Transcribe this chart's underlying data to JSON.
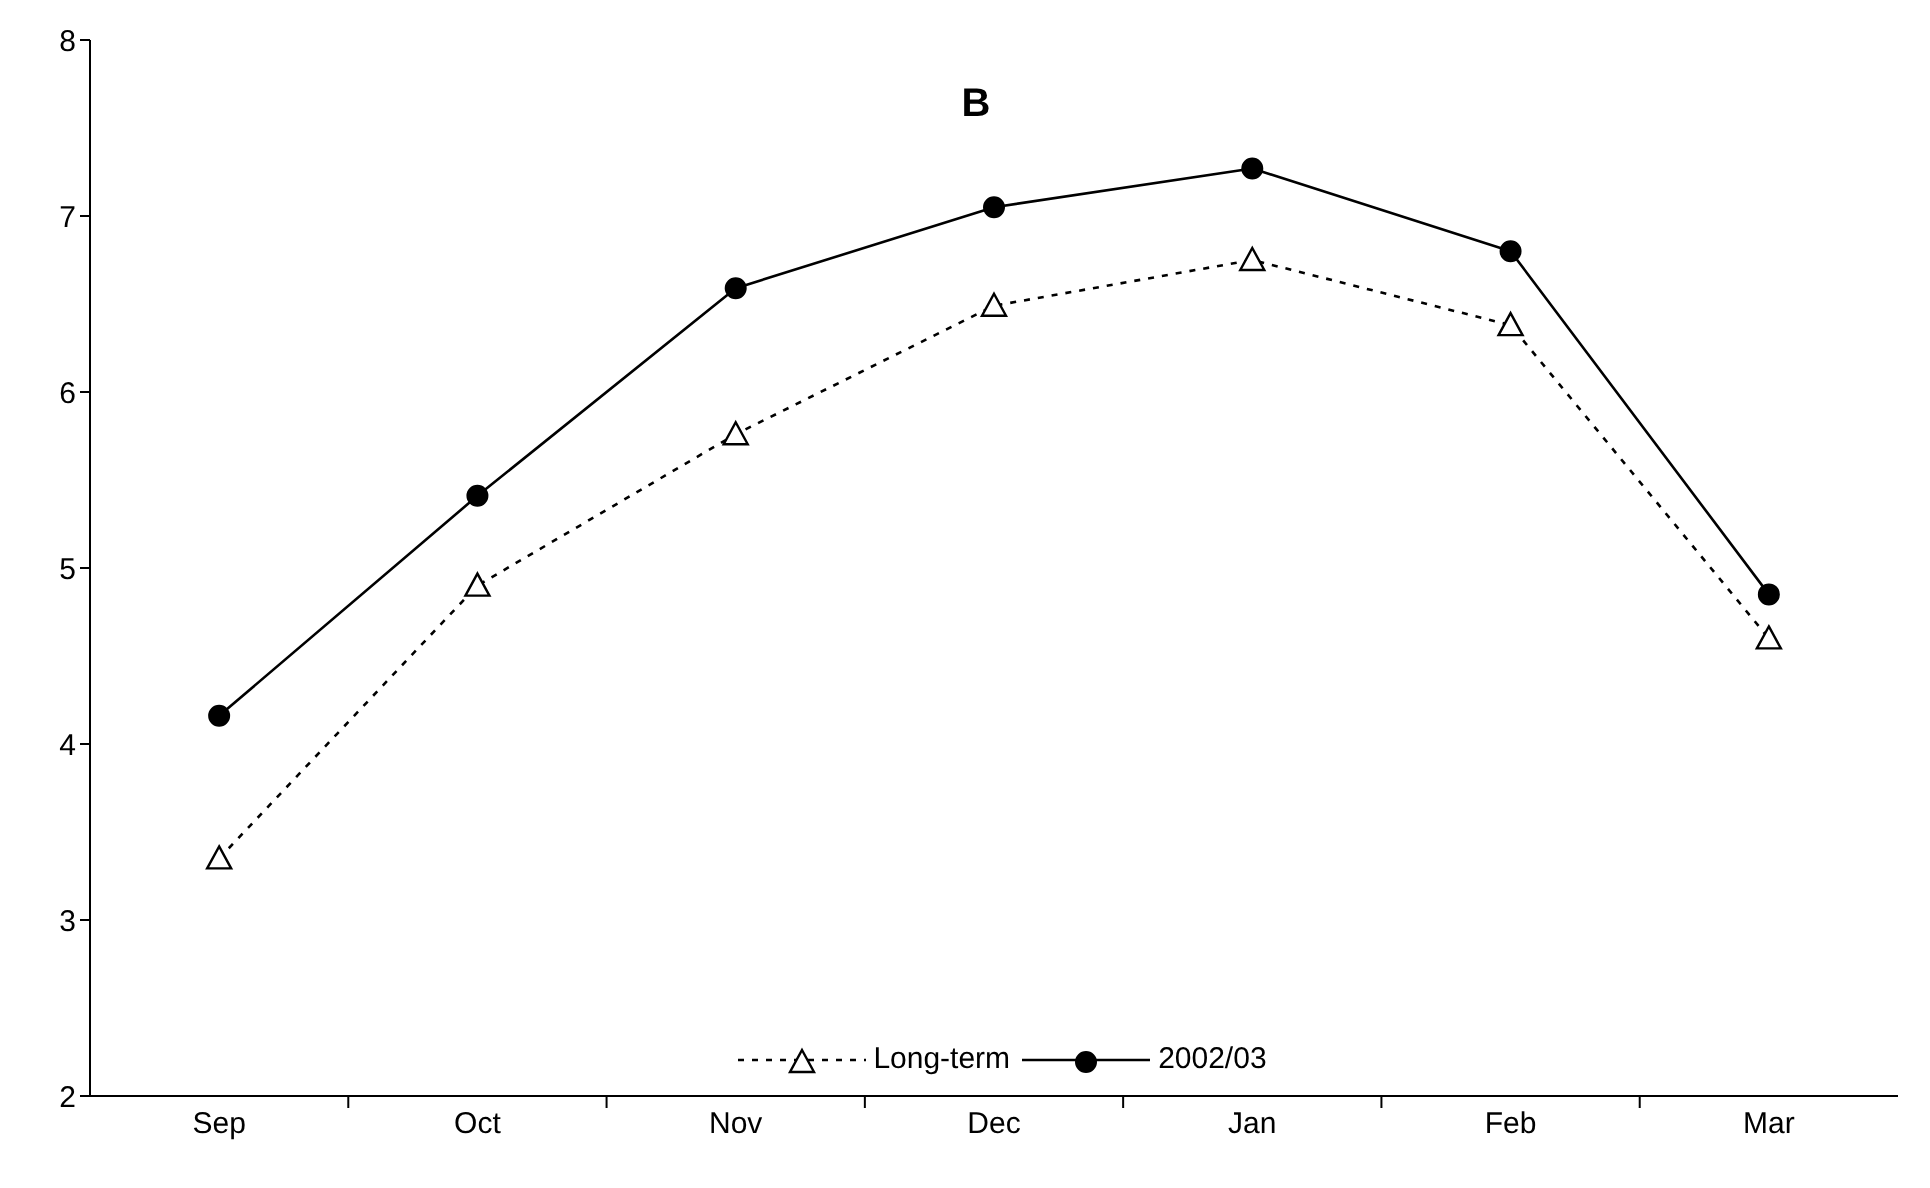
{
  "chart_data": {
    "type": "line",
    "title": "B",
    "categories": [
      "Sep",
      "Oct",
      "Nov",
      "Dec",
      "Jan",
      "Feb",
      "Mar"
    ],
    "series": [
      {
        "name": "Long-term",
        "color": "#000000",
        "marker": "triangle",
        "line_style": "dotted",
        "values": [
          3.35,
          4.9,
          5.76,
          6.49,
          6.75,
          6.38,
          4.6
        ]
      },
      {
        "name": "2002/03",
        "color": "#000000",
        "marker": "circle",
        "line_style": "solid",
        "values": [
          4.16,
          5.41,
          6.59,
          7.05,
          7.27,
          6.8,
          4.85
        ]
      }
    ],
    "ylim": [
      2,
      8
    ],
    "yticks": [
      2,
      3,
      4,
      5,
      6,
      7,
      8
    ],
    "legend": "bottom"
  }
}
